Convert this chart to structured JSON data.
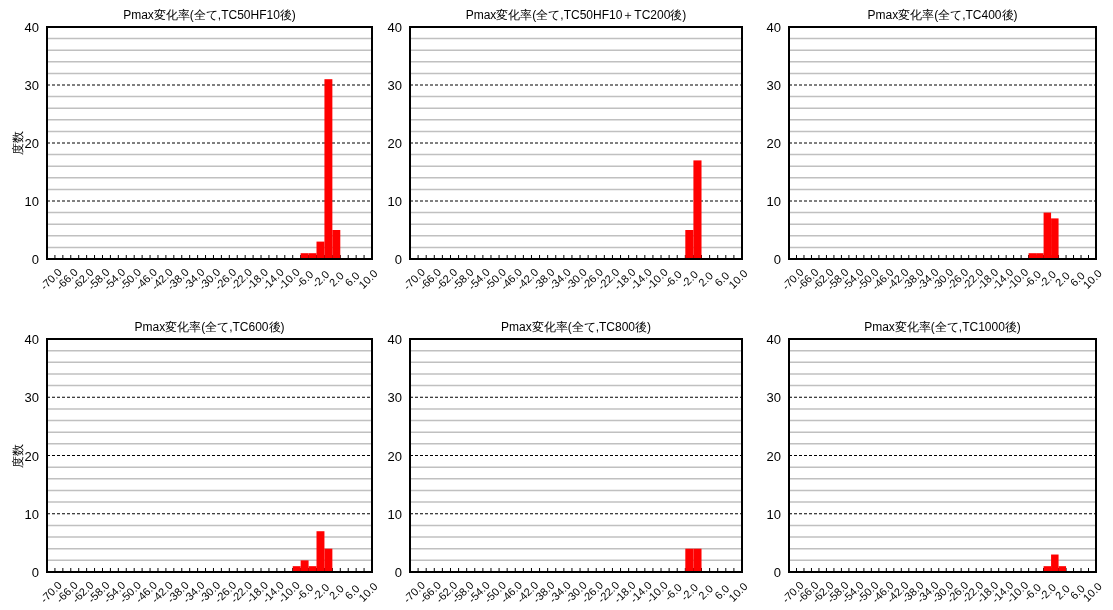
{
  "chart_data": [
    {
      "type": "bar",
      "title": "Pmax変化率(全て,TC50HF10後)",
      "ylabel": "度数",
      "color": "#ff0000",
      "grid": "y",
      "categories": [
        "-70.0",
        null,
        "-66.0",
        null,
        "-62.0",
        null,
        "-58.0",
        null,
        "-54.0",
        null,
        "-50.0",
        null,
        "-46.0",
        null,
        "-42.0",
        null,
        "-38.0",
        null,
        "-34.0",
        null,
        "-30.0",
        null,
        "-26.0",
        null,
        "-22.0",
        null,
        "-18.0",
        null,
        "-14.0",
        null,
        "-10.0",
        null,
        "-6.0",
        null,
        "-2.0",
        null,
        "2.0",
        null,
        "6.0",
        null,
        "10.0"
      ],
      "values": [
        0,
        0,
        0,
        0,
        0,
        0,
        0,
        0,
        0,
        0,
        0,
        0,
        0,
        0,
        0,
        0,
        0,
        0,
        0,
        0,
        0,
        0,
        0,
        0,
        0,
        0,
        0,
        0,
        0,
        0,
        0,
        0,
        1,
        1,
        3,
        31,
        5,
        0,
        0,
        0,
        0
      ],
      "ylim": [
        0,
        40
      ],
      "yticks": [
        0,
        {
          "value": 2,
          "label": null
        },
        {
          "value": 4,
          "label": null
        },
        {
          "value": 6,
          "label": null
        },
        {
          "value": 8,
          "label": null
        },
        10,
        {
          "value": 12,
          "label": null
        },
        {
          "value": 14,
          "label": null
        },
        {
          "value": 16,
          "label": null
        },
        {
          "value": 18,
          "label": null
        },
        20,
        {
          "value": 22,
          "label": null
        },
        {
          "value": 24,
          "label": null
        },
        {
          "value": 26,
          "label": null
        },
        {
          "value": 28,
          "label": null
        },
        30,
        {
          "value": 32,
          "label": null
        },
        {
          "value": 34,
          "label": null
        },
        {
          "value": 36,
          "label": null
        },
        {
          "value": 38,
          "label": null
        },
        40
      ]
    },
    {
      "type": "bar",
      "title": "Pmax変化率(全て,TC50HF10＋TC200後)",
      "color": "#ff0000",
      "grid": "y",
      "categories": [
        "-70.0",
        null,
        "-66.0",
        null,
        "-62.0",
        null,
        "-58.0",
        null,
        "-54.0",
        null,
        "-50.0",
        null,
        "-46.0",
        null,
        "-42.0",
        null,
        "-38.0",
        null,
        "-34.0",
        null,
        "-30.0",
        null,
        "-26.0",
        null,
        "-22.0",
        null,
        "-18.0",
        null,
        "-14.0",
        null,
        "-10.0",
        null,
        "-6.0",
        null,
        "-2.0",
        null,
        "2.0",
        null,
        "6.0",
        null,
        "10.0"
      ],
      "values": [
        0,
        0,
        0,
        0,
        0,
        0,
        0,
        0,
        0,
        0,
        0,
        0,
        0,
        0,
        0,
        0,
        0,
        0,
        0,
        0,
        0,
        0,
        0,
        0,
        0,
        0,
        0,
        0,
        0,
        0,
        0,
        0,
        0,
        0,
        5,
        17,
        0,
        0,
        0,
        0,
        0
      ],
      "ylim": [
        0,
        40
      ],
      "yticks": [
        0,
        {
          "value": 2,
          "label": null
        },
        {
          "value": 4,
          "label": null
        },
        {
          "value": 6,
          "label": null
        },
        {
          "value": 8,
          "label": null
        },
        10,
        {
          "value": 12,
          "label": null
        },
        {
          "value": 14,
          "label": null
        },
        {
          "value": 16,
          "label": null
        },
        {
          "value": 18,
          "label": null
        },
        20,
        {
          "value": 22,
          "label": null
        },
        {
          "value": 24,
          "label": null
        },
        {
          "value": 26,
          "label": null
        },
        {
          "value": 28,
          "label": null
        },
        30,
        {
          "value": 32,
          "label": null
        },
        {
          "value": 34,
          "label": null
        },
        {
          "value": 36,
          "label": null
        },
        {
          "value": 38,
          "label": null
        },
        40
      ]
    },
    {
      "type": "bar",
      "title": "Pmax変化率(全て,TC400後)",
      "color": "#ff0000",
      "grid": "y",
      "categories": [
        "-70.0",
        null,
        "-66.0",
        null,
        "-62.0",
        null,
        "-58.0",
        null,
        "-54.0",
        null,
        "-50.0",
        null,
        "-46.0",
        null,
        "-42.0",
        null,
        "-38.0",
        null,
        "-34.0",
        null,
        "-30.0",
        null,
        "-26.0",
        null,
        "-22.0",
        null,
        "-18.0",
        null,
        "-14.0",
        null,
        "-10.0",
        null,
        "-6.0",
        null,
        "-2.0",
        null,
        "2.0",
        null,
        "6.0",
        null,
        "10.0"
      ],
      "values": [
        0,
        0,
        0,
        0,
        0,
        0,
        0,
        0,
        0,
        0,
        0,
        0,
        0,
        0,
        0,
        0,
        0,
        0,
        0,
        0,
        0,
        0,
        0,
        0,
        0,
        0,
        0,
        0,
        0,
        0,
        0,
        0,
        1,
        1,
        8,
        7,
        0,
        0,
        0,
        0,
        0
      ],
      "ylim": [
        0,
        40
      ],
      "yticks": [
        0,
        {
          "value": 2,
          "label": null
        },
        {
          "value": 4,
          "label": null
        },
        {
          "value": 6,
          "label": null
        },
        {
          "value": 8,
          "label": null
        },
        10,
        {
          "value": 12,
          "label": null
        },
        {
          "value": 14,
          "label": null
        },
        {
          "value": 16,
          "label": null
        },
        {
          "value": 18,
          "label": null
        },
        20,
        {
          "value": 22,
          "label": null
        },
        {
          "value": 24,
          "label": null
        },
        {
          "value": 26,
          "label": null
        },
        {
          "value": 28,
          "label": null
        },
        30,
        {
          "value": 32,
          "label": null
        },
        {
          "value": 34,
          "label": null
        },
        {
          "value": 36,
          "label": null
        },
        {
          "value": 38,
          "label": null
        },
        40
      ]
    },
    {
      "type": "bar",
      "title": "Pmax変化率(全て,TC600後)",
      "ylabel": "度数",
      "color": "#ff0000",
      "grid": "y",
      "categories": [
        "-70.0",
        null,
        "-66.0",
        null,
        "-62.0",
        null,
        "-58.0",
        null,
        "-54.0",
        null,
        "-50.0",
        null,
        "-46.0",
        null,
        "-42.0",
        null,
        "-38.0",
        null,
        "-34.0",
        null,
        "-30.0",
        null,
        "-26.0",
        null,
        "-22.0",
        null,
        "-18.0",
        null,
        "-14.0",
        null,
        "-10.0",
        null,
        "-6.0",
        null,
        "-2.0",
        null,
        "2.0",
        null,
        "6.0",
        null,
        "10.0"
      ],
      "values": [
        0,
        0,
        0,
        0,
        0,
        0,
        0,
        0,
        0,
        0,
        0,
        0,
        0,
        0,
        0,
        0,
        0,
        0,
        0,
        0,
        0,
        0,
        0,
        0,
        0,
        0,
        0,
        0,
        0,
        0,
        0,
        1,
        2,
        1,
        7,
        4,
        0,
        0,
        0,
        0,
        0
      ],
      "ylim": [
        0,
        40
      ],
      "yticks": [
        0,
        {
          "value": 2,
          "label": null
        },
        {
          "value": 4,
          "label": null
        },
        {
          "value": 6,
          "label": null
        },
        {
          "value": 8,
          "label": null
        },
        10,
        {
          "value": 12,
          "label": null
        },
        {
          "value": 14,
          "label": null
        },
        {
          "value": 16,
          "label": null
        },
        {
          "value": 18,
          "label": null
        },
        20,
        {
          "value": 22,
          "label": null
        },
        {
          "value": 24,
          "label": null
        },
        {
          "value": 26,
          "label": null
        },
        {
          "value": 28,
          "label": null
        },
        30,
        {
          "value": 32,
          "label": null
        },
        {
          "value": 34,
          "label": null
        },
        {
          "value": 36,
          "label": null
        },
        {
          "value": 38,
          "label": null
        },
        40
      ]
    },
    {
      "type": "bar",
      "title": "Pmax変化率(全て,TC800後)",
      "color": "#ff0000",
      "grid": "y",
      "categories": [
        "-70.0",
        null,
        "-66.0",
        null,
        "-62.0",
        null,
        "-58.0",
        null,
        "-54.0",
        null,
        "-50.0",
        null,
        "-46.0",
        null,
        "-42.0",
        null,
        "-38.0",
        null,
        "-34.0",
        null,
        "-30.0",
        null,
        "-26.0",
        null,
        "-22.0",
        null,
        "-18.0",
        null,
        "-14.0",
        null,
        "-10.0",
        null,
        "-6.0",
        null,
        "-2.0",
        null,
        "2.0",
        null,
        "6.0",
        null,
        "10.0"
      ],
      "values": [
        0,
        0,
        0,
        0,
        0,
        0,
        0,
        0,
        0,
        0,
        0,
        0,
        0,
        0,
        0,
        0,
        0,
        0,
        0,
        0,
        0,
        0,
        0,
        0,
        0,
        0,
        0,
        0,
        0,
        0,
        0,
        0,
        0,
        0,
        4,
        4,
        0,
        0,
        0,
        0,
        0
      ],
      "ylim": [
        0,
        40
      ],
      "yticks": [
        0,
        {
          "value": 2,
          "label": null
        },
        {
          "value": 4,
          "label": null
        },
        {
          "value": 6,
          "label": null
        },
        {
          "value": 8,
          "label": null
        },
        10,
        {
          "value": 12,
          "label": null
        },
        {
          "value": 14,
          "label": null
        },
        {
          "value": 16,
          "label": null
        },
        {
          "value": 18,
          "label": null
        },
        20,
        {
          "value": 22,
          "label": null
        },
        {
          "value": 24,
          "label": null
        },
        {
          "value": 26,
          "label": null
        },
        {
          "value": 28,
          "label": null
        },
        30,
        {
          "value": 32,
          "label": null
        },
        {
          "value": 34,
          "label": null
        },
        {
          "value": 36,
          "label": null
        },
        {
          "value": 38,
          "label": null
        },
        40
      ]
    },
    {
      "type": "bar",
      "title": "Pmax変化率(全て,TC1000後)",
      "color": "#ff0000",
      "grid": "y",
      "categories": [
        "-70.0",
        null,
        "-66.0",
        null,
        "-62.0",
        null,
        "-58.0",
        null,
        "-54.0",
        null,
        "-50.0",
        null,
        "-46.0",
        null,
        "-42.0",
        null,
        "-38.0",
        null,
        "-34.0",
        null,
        "-30.0",
        null,
        "-26.0",
        null,
        "-22.0",
        null,
        "-18.0",
        null,
        "-14.0",
        null,
        "-10.0",
        null,
        "-6.0",
        null,
        "-2.0",
        null,
        "2.0",
        null,
        "6.0",
        null,
        "10.0"
      ],
      "values": [
        0,
        0,
        0,
        0,
        0,
        0,
        0,
        0,
        0,
        0,
        0,
        0,
        0,
        0,
        0,
        0,
        0,
        0,
        0,
        0,
        0,
        0,
        0,
        0,
        0,
        0,
        0,
        0,
        0,
        0,
        0,
        0,
        0,
        0,
        1,
        3,
        1,
        0,
        0,
        0,
        0
      ],
      "ylim": [
        0,
        40
      ],
      "yticks": [
        0,
        {
          "value": 2,
          "label": null
        },
        {
          "value": 4,
          "label": null
        },
        {
          "value": 6,
          "label": null
        },
        {
          "value": 8,
          "label": null
        },
        10,
        {
          "value": 12,
          "label": null
        },
        {
          "value": 14,
          "label": null
        },
        {
          "value": 16,
          "label": null
        },
        {
          "value": 18,
          "label": null
        },
        20,
        {
          "value": 22,
          "label": null
        },
        {
          "value": 24,
          "label": null
        },
        {
          "value": 26,
          "label": null
        },
        {
          "value": 28,
          "label": null
        },
        30,
        {
          "value": 32,
          "label": null
        },
        {
          "value": 34,
          "label": null
        },
        {
          "value": 36,
          "label": null
        },
        {
          "value": 38,
          "label": null
        },
        40
      ]
    }
  ]
}
